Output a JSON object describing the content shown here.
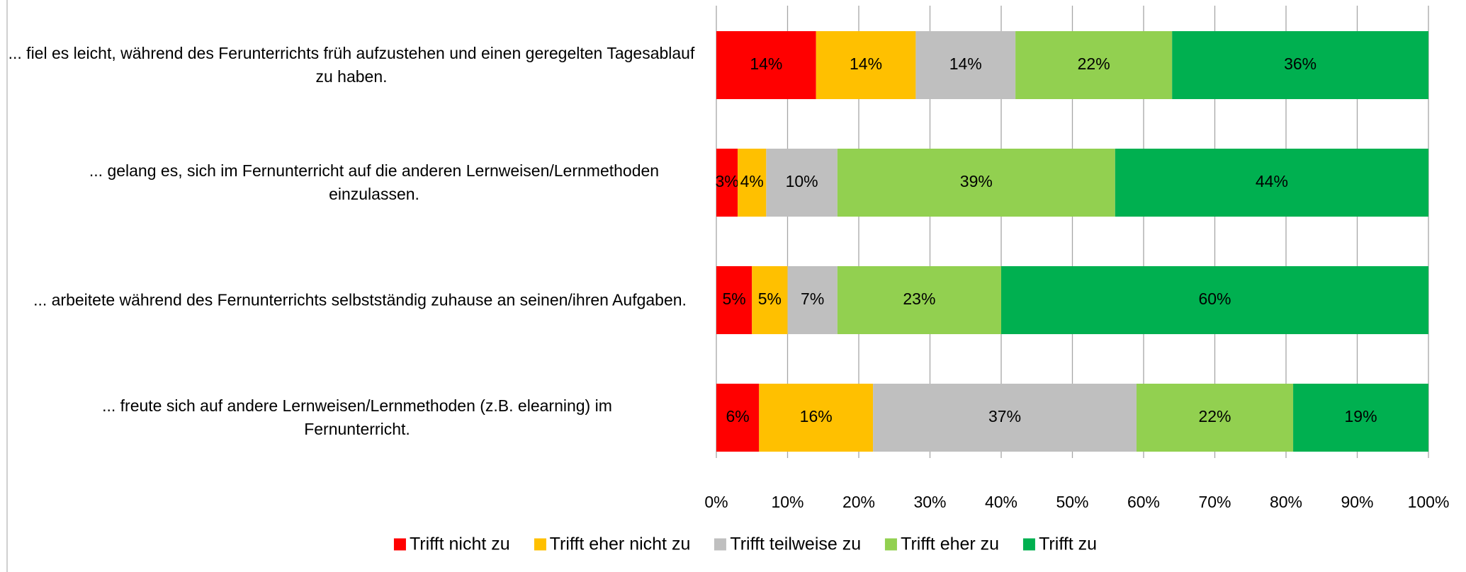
{
  "chart_data": {
    "type": "stacked_bar_horizontal",
    "categories": [
      "... fiel es leicht, während des Ferunterrichts früh aufzustehen und einen geregelten Tagesablauf zu haben.",
      "... gelang es, sich im Fernunterricht auf die anderen Lernweisen/Lernmethoden einzulassen.",
      "... arbeitete während des Fernunterrichts selbstständig zuhause an seinen/ihren Aufgaben.",
      "... freute sich auf andere Lernweisen/Lernmethoden (z.B. elearning) im Fernunterricht."
    ],
    "series": [
      {
        "name": "Trifft nicht zu",
        "color": "#ff0000",
        "values": [
          14,
          3,
          5,
          6
        ],
        "value_labels": [
          "14%",
          "3%",
          "5%",
          "6%"
        ]
      },
      {
        "name": "Trifft eher nicht zu",
        "color": "#ffc000",
        "values": [
          14,
          4,
          5,
          16
        ],
        "value_labels": [
          "14%",
          "4%",
          "5%",
          "16%"
        ]
      },
      {
        "name": "Trifft teilweise zu",
        "color": "#bfbfbf",
        "values": [
          14,
          10,
          7,
          37
        ],
        "value_labels": [
          "14%",
          "10%",
          "7%",
          "37%"
        ]
      },
      {
        "name": "Trifft eher zu",
        "color": "#92d050",
        "values": [
          22,
          39,
          23,
          22
        ],
        "value_labels": [
          "22%",
          "39%",
          "23%",
          "22%"
        ]
      },
      {
        "name": "Trifft zu",
        "color": "#00b050",
        "values": [
          36,
          44,
          60,
          19
        ],
        "value_labels": [
          "36%",
          "44%",
          "60%",
          "19%"
        ]
      }
    ],
    "xlim": [
      0,
      100
    ],
    "xticks": [
      {
        "value": 0,
        "label": "0%"
      },
      {
        "value": 10,
        "label": "10%"
      },
      {
        "value": 20,
        "label": "20%"
      },
      {
        "value": 30,
        "label": "30%"
      },
      {
        "value": 40,
        "label": "40%"
      },
      {
        "value": 50,
        "label": "50%"
      },
      {
        "value": 60,
        "label": "60%"
      },
      {
        "value": 70,
        "label": "70%"
      },
      {
        "value": 80,
        "label": "80%"
      },
      {
        "value": 90,
        "label": "90%"
      },
      {
        "value": 100,
        "label": "100%"
      }
    ],
    "grid": true,
    "legend": "bottom"
  }
}
